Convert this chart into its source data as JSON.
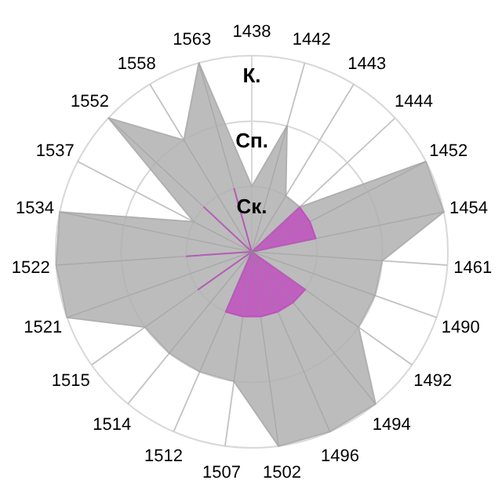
{
  "chart_data": {
    "type": "radar",
    "categories": [
      "1438",
      "1442",
      "1443",
      "1444",
      "1452",
      "1454",
      "1461",
      "1490",
      "1492",
      "1494",
      "1496",
      "1502",
      "1507",
      "1512",
      "1514",
      "1515",
      "1521",
      "1522",
      "1534",
      "1537",
      "1552",
      "1558",
      "1563"
    ],
    "series": [
      {
        "color": "#b0b0b0",
        "values": [
          1,
          2,
          1,
          1,
          3,
          3,
          2,
          2,
          2,
          3,
          3,
          3,
          2,
          2,
          2,
          2,
          3,
          3,
          3,
          1,
          3,
          2,
          3
        ]
      },
      {
        "color": "#c050c0",
        "values": [
          0,
          0,
          0,
          1,
          1,
          1,
          0,
          0,
          1,
          1,
          1,
          1,
          1,
          1,
          0,
          1,
          0,
          1,
          0,
          0,
          1,
          0,
          1
        ]
      }
    ],
    "ylim": [
      0,
      3
    ],
    "yticks": [
      {
        "value": 1,
        "label": "Ск."
      },
      {
        "value": 2,
        "label": "Сп."
      },
      {
        "value": 3,
        "label": "К."
      }
    ],
    "grid": true
  }
}
